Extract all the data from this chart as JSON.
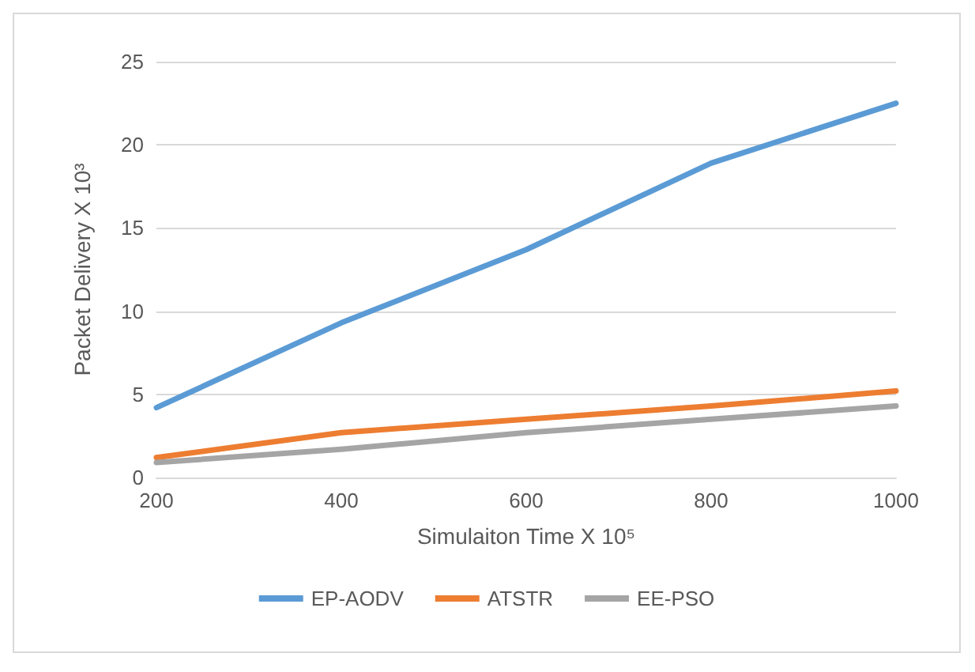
{
  "chart_data": {
    "type": "line",
    "xlabel": "Simulaiton Time X 10⁵",
    "ylabel": "Packet Delivery X 10³",
    "categories": [
      "200",
      "400",
      "600",
      "800",
      "1000"
    ],
    "series": [
      {
        "name": "EP-AODV",
        "color": "#5b9bd5",
        "values": [
          4.2,
          9.3,
          13.7,
          18.9,
          22.5
        ]
      },
      {
        "name": "ATSTR",
        "color": "#ed7d31",
        "values": [
          1.2,
          2.7,
          3.5,
          4.3,
          5.2
        ]
      },
      {
        "name": "EE-PSO",
        "color": "#a5a5a5",
        "values": [
          0.9,
          1.7,
          2.7,
          3.5,
          4.3
        ]
      }
    ],
    "ylim": [
      0,
      25
    ],
    "yticks": [
      0,
      5,
      10,
      15,
      20,
      25
    ],
    "grid": "y",
    "legend": "bottom",
    "marker": "none",
    "line_style": "solid"
  }
}
